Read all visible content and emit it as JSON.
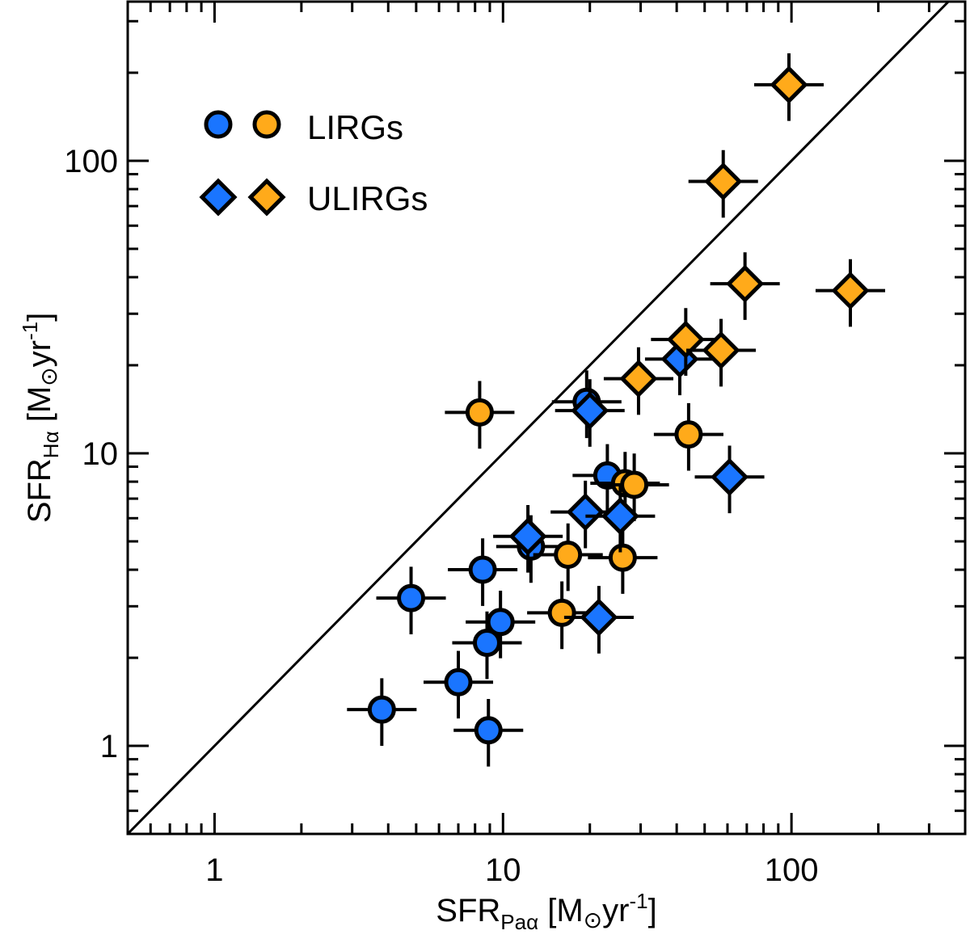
{
  "chart_data": {
    "type": "scatter",
    "xscale": "log",
    "yscale": "log",
    "xlim": [
      0.5,
      400
    ],
    "ylim": [
      0.5,
      350
    ],
    "xticks": [
      1,
      10,
      100
    ],
    "yticks": [
      1,
      10,
      100
    ],
    "xtick_labels": [
      "1",
      "10",
      "100"
    ],
    "ytick_labels": [
      "1",
      "10",
      "100"
    ],
    "xlabel": {
      "main": "SFR",
      "sub": "Paα",
      "unit_open": " [M",
      "sun": "⊙",
      "unit_mid": "yr",
      "sup": "-1",
      "unit_close": "]"
    },
    "ylabel": {
      "main": "SFR",
      "sub": "Hα",
      "unit_open": " [M",
      "sun": "⊙",
      "unit_mid": "yr",
      "sup": "-1",
      "unit_close": "]"
    },
    "one_to_one_line": true,
    "legend": {
      "position": "top-left",
      "entries": [
        {
          "label": "LIRGs",
          "marker": "circle",
          "colors": [
            "#1a75ff",
            "#ffaa1a"
          ]
        },
        {
          "label": "ULIRGs",
          "marker": "diamond",
          "colors": [
            "#1a75ff",
            "#ffaa1a"
          ]
        }
      ]
    },
    "colors": {
      "blue": "#1a75ff",
      "orange": "#ffaa1a"
    },
    "series": [
      {
        "name": "LIRGs blue",
        "marker": "circle",
        "color": "#1a75ff",
        "points": [
          [
            3.8,
            1.33
          ],
          [
            4.8,
            3.2
          ],
          [
            7.0,
            1.65
          ],
          [
            8.5,
            4.0
          ],
          [
            8.8,
            2.25
          ],
          [
            8.9,
            1.13
          ],
          [
            9.8,
            2.65
          ],
          [
            12.5,
            4.8
          ],
          [
            19.5,
            15.0
          ],
          [
            23.0,
            8.4
          ]
        ]
      },
      {
        "name": "LIRGs orange",
        "marker": "circle",
        "color": "#ffaa1a",
        "points": [
          [
            8.3,
            13.8
          ],
          [
            16.0,
            2.85
          ],
          [
            16.8,
            4.5
          ],
          [
            26.0,
            4.4
          ],
          [
            26.5,
            7.9
          ],
          [
            28.5,
            7.8
          ],
          [
            44.0,
            11.6
          ]
        ]
      },
      {
        "name": "ULIRGs blue",
        "marker": "diamond",
        "color": "#1a75ff",
        "points": [
          [
            12.2,
            5.2
          ],
          [
            19.3,
            6.3
          ],
          [
            20.0,
            14.0
          ],
          [
            21.5,
            2.75
          ],
          [
            25.5,
            6.1
          ],
          [
            41.0,
            21.0
          ],
          [
            61.0,
            8.3
          ]
        ]
      },
      {
        "name": "ULIRGs orange",
        "marker": "diamond",
        "color": "#ffaa1a",
        "points": [
          [
            29.5,
            18.0
          ],
          [
            43.0,
            24.5
          ],
          [
            57.0,
            22.5
          ],
          [
            58.0,
            85.0
          ],
          [
            69.0,
            38.0
          ],
          [
            98.0,
            182.0
          ],
          [
            160.0,
            36.0
          ]
        ]
      }
    ]
  }
}
